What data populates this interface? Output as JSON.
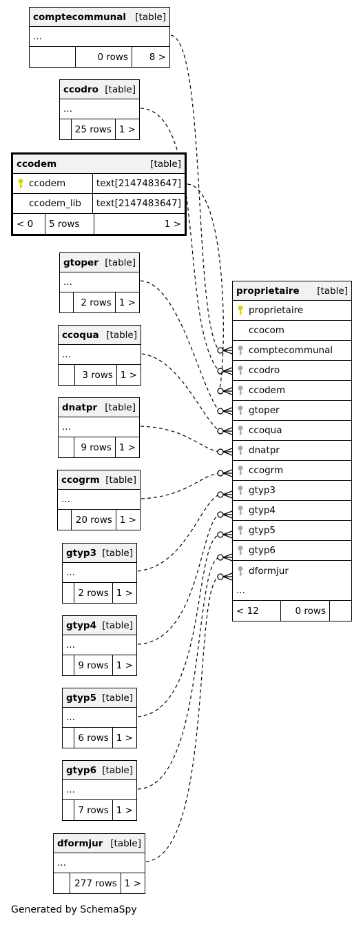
{
  "tables": [
    {
      "name": "comptecommunal",
      "kind": "[table]",
      "stats": [
        "",
        "0 rows",
        "8 >"
      ]
    },
    {
      "name": "ccodro",
      "kind": "[table]",
      "stats": [
        "",
        "25 rows",
        "1 >"
      ]
    },
    {
      "name": "ccodem",
      "kind": "[table]",
      "columns": [
        {
          "name": "ccodem",
          "type": "text[2147483647]",
          "key": "primary"
        },
        {
          "name": "ccodem_lib",
          "type": "text[2147483647]",
          "key": ""
        }
      ],
      "stats": [
        "< 0",
        "5 rows",
        "1 >"
      ]
    },
    {
      "name": "gtoper",
      "kind": "[table]",
      "stats": [
        "",
        "2 rows",
        "1 >"
      ]
    },
    {
      "name": "ccoqua",
      "kind": "[table]",
      "stats": [
        "",
        "3 rows",
        "1 >"
      ]
    },
    {
      "name": "dnatpr",
      "kind": "[table]",
      "stats": [
        "",
        "9 rows",
        "1 >"
      ]
    },
    {
      "name": "ccogrm",
      "kind": "[table]",
      "stats": [
        "",
        "20 rows",
        "1 >"
      ]
    },
    {
      "name": "gtyp3",
      "kind": "[table]",
      "stats": [
        "",
        "2 rows",
        "1 >"
      ]
    },
    {
      "name": "gtyp4",
      "kind": "[table]",
      "stats": [
        "",
        "9 rows",
        "1 >"
      ]
    },
    {
      "name": "gtyp5",
      "kind": "[table]",
      "stats": [
        "",
        "6 rows",
        "1 >"
      ]
    },
    {
      "name": "gtyp6",
      "kind": "[table]",
      "stats": [
        "",
        "7 rows",
        "1 >"
      ]
    },
    {
      "name": "dformjur",
      "kind": "[table]",
      "stats": [
        "",
        "277 rows",
        "1 >"
      ]
    }
  ],
  "ellipsis": "...",
  "proprietaire": {
    "name": "proprietaire",
    "kind": "[table]",
    "columns": [
      {
        "name": "proprietaire",
        "key": "primary"
      },
      {
        "name": "ccocom",
        "key": ""
      },
      {
        "name": "comptecommunal",
        "key": "foreign"
      },
      {
        "name": "ccodro",
        "key": "foreign"
      },
      {
        "name": "ccodem",
        "key": "foreign"
      },
      {
        "name": "gtoper",
        "key": "foreign"
      },
      {
        "name": "ccoqua",
        "key": "foreign"
      },
      {
        "name": "dnatpr",
        "key": "foreign"
      },
      {
        "name": "ccogrm",
        "key": "foreign"
      },
      {
        "name": "gtyp3",
        "key": "foreign"
      },
      {
        "name": "gtyp4",
        "key": "foreign"
      },
      {
        "name": "gtyp5",
        "key": "foreign"
      },
      {
        "name": "gtyp6",
        "key": "foreign"
      },
      {
        "name": "dformjur",
        "key": "foreign"
      }
    ],
    "stats": [
      "< 12",
      "0 rows",
      ""
    ]
  },
  "footer": "Generated by SchemaSpy",
  "colors": {
    "primary_key": "#e0d000",
    "foreign_key": "#a8a8a8",
    "header_bg": "#f2f2f2"
  }
}
